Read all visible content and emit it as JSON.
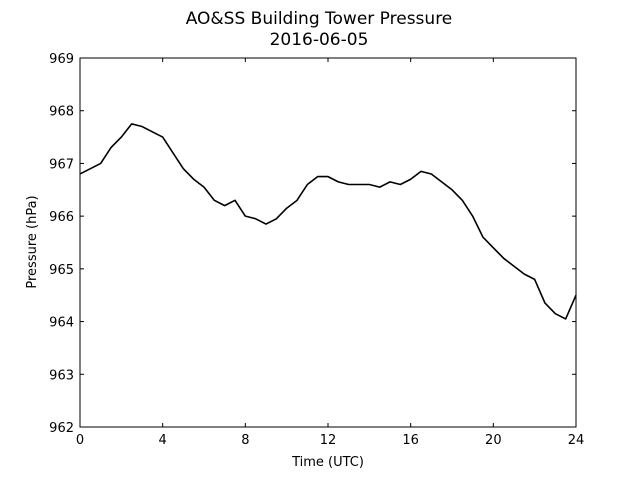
{
  "chart_data": {
    "type": "line",
    "title": "AO&SS Building Tower Pressure",
    "subtitle": "2016-06-05",
    "xlabel": "Time (UTC)",
    "ylabel": "Pressure (hPa)",
    "xlim": [
      0,
      24
    ],
    "ylim": [
      962,
      969
    ],
    "xticks": [
      0,
      4,
      8,
      12,
      16,
      20,
      24
    ],
    "yticks": [
      962,
      963,
      964,
      965,
      966,
      967,
      968,
      969
    ],
    "grid": false,
    "legend": "none",
    "line_color": "#000000",
    "series": [
      {
        "x": [
          0,
          0.5,
          1,
          1.5,
          2,
          2.5,
          3,
          3.5,
          4,
          4.5,
          5,
          5.5,
          6,
          6.5,
          7,
          7.5,
          8,
          8.5,
          9,
          9.5,
          10,
          10.5,
          11,
          11.5,
          12,
          12.5,
          13,
          13.5,
          14,
          14.5,
          15,
          15.5,
          16,
          16.5,
          17,
          17.5,
          18,
          18.5,
          19,
          19.5,
          20,
          20.5,
          21,
          21.5,
          22,
          22.5,
          23,
          23.5,
          24
        ],
        "y": [
          966.8,
          966.9,
          967.0,
          967.3,
          967.5,
          967.75,
          967.7,
          967.6,
          967.5,
          967.2,
          966.9,
          966.7,
          966.55,
          966.3,
          966.2,
          966.3,
          966.0,
          965.95,
          965.85,
          965.95,
          966.15,
          966.3,
          966.6,
          966.75,
          966.75,
          966.65,
          966.6,
          966.6,
          966.6,
          966.55,
          966.65,
          966.6,
          966.7,
          966.85,
          966.8,
          966.65,
          966.5,
          966.3,
          966.0,
          965.6,
          965.4,
          965.2,
          965.05,
          964.9,
          964.8,
          964.35,
          964.15,
          964.05,
          964.5
        ]
      }
    ]
  }
}
